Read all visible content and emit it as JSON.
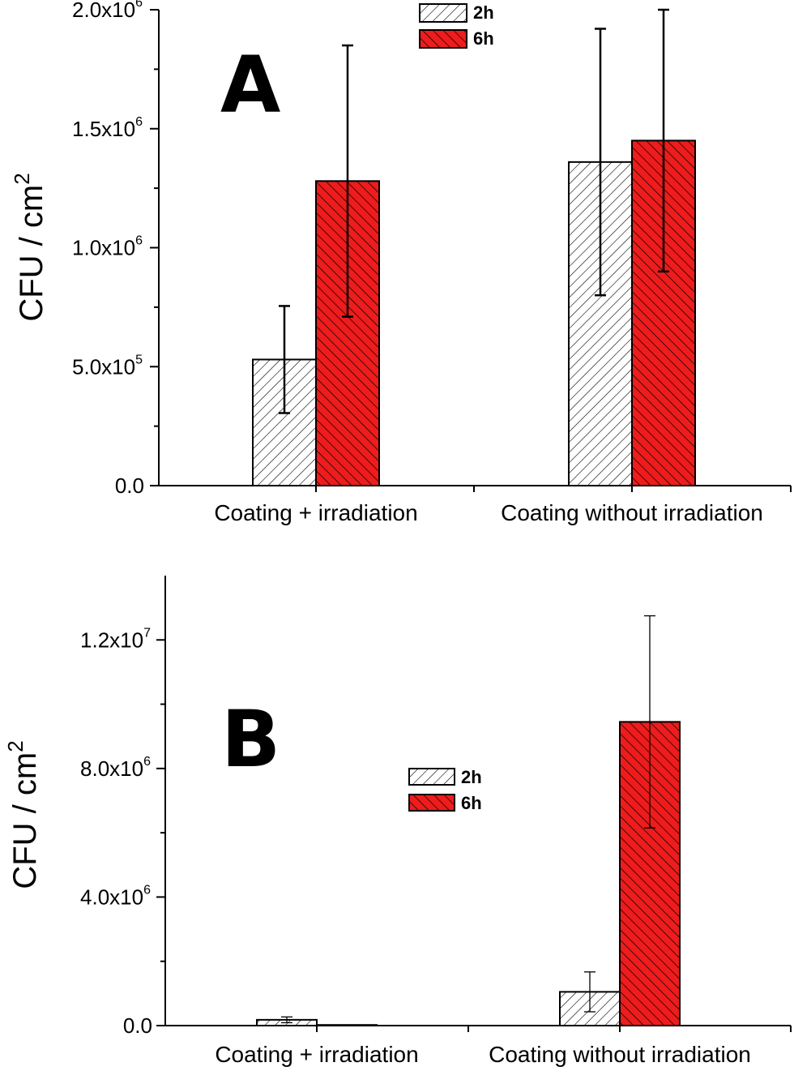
{
  "colors": {
    "series_2h": "#ffffff",
    "series_6h": "#ee1c1c",
    "axis": "#000000"
  },
  "chart_data": [
    {
      "type": "bar",
      "panel_label": "A",
      "ylabel": "CFU / cm",
      "ylabel_sup": "2",
      "categories": [
        "Coating + irradiation",
        "Coating without irradiation"
      ],
      "series": [
        {
          "name": "2h",
          "values": [
            530000,
            1360000
          ],
          "errors": [
            225000,
            560000
          ]
        },
        {
          "name": "6h",
          "values": [
            1280000,
            1450000
          ],
          "errors": [
            570000,
            550000
          ]
        }
      ],
      "ylim": [
        0,
        2000000
      ],
      "yticks": [
        {
          "value": 0,
          "mantissa": "0.0",
          "exp": ""
        },
        {
          "value": 500000,
          "mantissa": "5.0x10",
          "exp": "5"
        },
        {
          "value": 1000000,
          "mantissa": "1.0x10",
          "exp": "6"
        },
        {
          "value": 1500000,
          "mantissa": "1.5x10",
          "exp": "6"
        },
        {
          "value": 2000000,
          "mantissa": "2.0x10",
          "exp": "6"
        }
      ],
      "legend": "top-center",
      "grid": false
    },
    {
      "type": "bar",
      "panel_label": "B",
      "ylabel": "CFU / cm",
      "ylabel_sup": "2",
      "categories": [
        "Coating + irradiation",
        "Coating without irradiation"
      ],
      "series": [
        {
          "name": "2h",
          "values": [
            180000,
            1050000
          ],
          "errors": [
            90000,
            620000
          ]
        },
        {
          "name": "6h",
          "values": [
            20000,
            9450000
          ],
          "errors": [
            0,
            3300000
          ]
        }
      ],
      "ylim": [
        0,
        14000000
      ],
      "yticks": [
        {
          "value": 0,
          "mantissa": "0.0",
          "exp": ""
        },
        {
          "value": 4000000,
          "mantissa": "4.0x10",
          "exp": "6"
        },
        {
          "value": 8000000,
          "mantissa": "8.0x10",
          "exp": "6"
        },
        {
          "value": 12000000,
          "mantissa": "1.2x10",
          "exp": "7"
        }
      ],
      "legend": "center",
      "grid": false
    }
  ]
}
